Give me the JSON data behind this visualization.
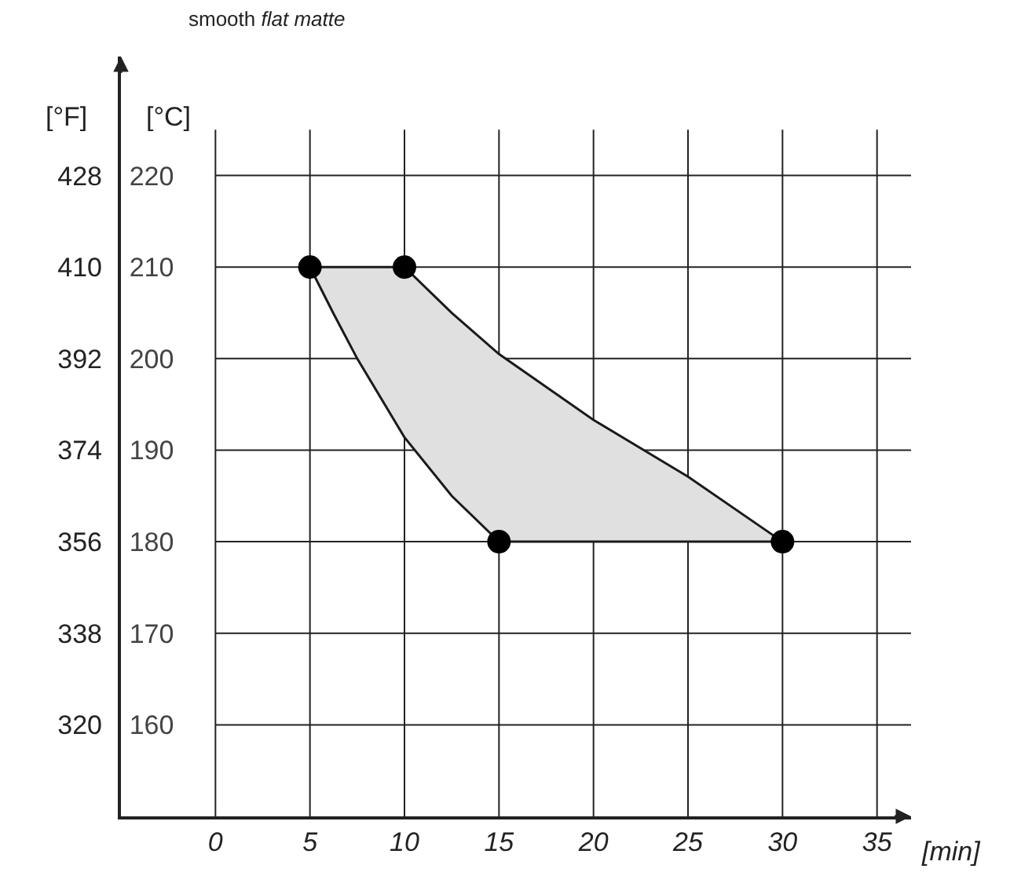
{
  "chart_data": {
    "type": "scatter",
    "title": "smooth",
    "subtitle": "flat matte",
    "xlabel": "[min]",
    "ylabel": "[°C]",
    "y2label": "[°F]",
    "xlim": [
      -5,
      36.8
    ],
    "xticks": [
      0,
      5,
      10,
      15,
      20,
      25,
      30,
      35
    ],
    "ylim": [
      150,
      233
    ],
    "yticks": [
      160,
      170,
      180,
      190,
      200,
      210,
      220
    ],
    "y2lim": [
      302,
      451.4
    ],
    "y2ticks": [
      320,
      338,
      356,
      374,
      392,
      410,
      428
    ],
    "grid": true,
    "series": [
      {
        "type": "area",
        "color": "#e0e0e0",
        "x": [
          5,
          10,
          12.5,
          15,
          20,
          25,
          30,
          15,
          12.5,
          10,
          7.5,
          6.25,
          5
        ],
        "values": [
          210,
          210,
          205,
          200.5,
          193.3,
          187.1,
          180,
          180,
          185,
          191.4,
          200,
          204.9,
          210
        ]
      },
      {
        "marker": "circle",
        "color": "#000000",
        "x": [
          5,
          10,
          15,
          30
        ],
        "values": [
          210,
          210,
          180,
          180
        ]
      }
    ]
  }
}
